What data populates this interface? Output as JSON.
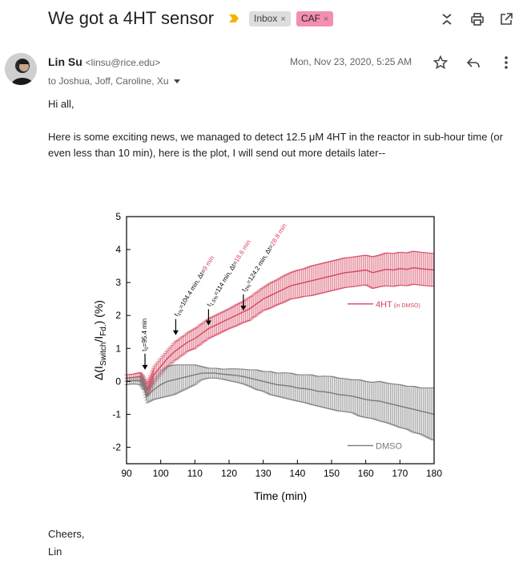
{
  "email": {
    "subject": "We got a 4HT sensor",
    "labels": [
      {
        "name": "Inbox",
        "remove": "×"
      },
      {
        "name": "CAF",
        "remove": "×"
      }
    ],
    "sender_name": "Lin Su",
    "sender_email": "<linsu@rice.edu>",
    "date": "Mon, Nov 23, 2020, 5:25 AM",
    "recipients": "to Joshua, Joff, Caroline, Xu",
    "greeting": "Hi all,",
    "body": "Here is some exciting news, we managed to detect 12.5 μM 4HT in the reactor in sub-hour time (or even less than 10 min), here is the plot, I will send out more details later--",
    "closing": "Cheers,",
    "signature": "Lin"
  },
  "icons": {
    "important": "important-marker-icon",
    "collapse": "collapse-icon",
    "print": "print-icon",
    "open_new": "open-in-new-window-icon",
    "star": "star-icon",
    "reply": "reply-icon",
    "more": "more-vertical-icon",
    "important_color": "#f4b400"
  },
  "chart_data": {
    "type": "line",
    "xlabel": "Time (min)",
    "ylabel_main": "Δ(I",
    "ylabel_sub1": "Switch",
    "ylabel_mid": "/I",
    "ylabel_sub2": "Fd.",
    "ylabel_tail": ") (%)",
    "xlim": [
      90,
      180
    ],
    "ylim": [
      -2.5,
      5
    ],
    "xticks": [
      90,
      100,
      110,
      120,
      130,
      140,
      150,
      160,
      170,
      180
    ],
    "yticks": [
      -2,
      -1,
      0,
      1,
      2,
      3,
      4,
      5
    ],
    "series": [
      {
        "name": "4HT",
        "name_suffix": "(in DMSO)",
        "color": "#d6455f",
        "x": [
          90,
          92,
          94,
          95,
          96,
          97,
          98,
          100,
          102,
          104,
          106,
          108,
          110,
          112,
          114,
          116,
          118,
          120,
          122,
          124,
          126,
          128,
          130,
          132,
          134,
          136,
          138,
          140,
          142,
          144,
          146,
          148,
          150,
          152,
          154,
          156,
          158,
          160,
          162,
          164,
          166,
          168,
          170,
          172,
          174,
          176,
          178,
          180
        ],
        "y": [
          0.1,
          0.12,
          0.15,
          0.0,
          -0.25,
          -0.05,
          0.2,
          0.45,
          0.7,
          0.9,
          1.05,
          1.2,
          1.3,
          1.45,
          1.6,
          1.7,
          1.8,
          1.9,
          2.0,
          2.1,
          2.2,
          2.35,
          2.5,
          2.6,
          2.7,
          2.8,
          2.9,
          2.95,
          3.0,
          3.05,
          3.1,
          3.15,
          3.2,
          3.25,
          3.3,
          3.32,
          3.35,
          3.38,
          3.3,
          3.35,
          3.4,
          3.38,
          3.42,
          3.4,
          3.45,
          3.42,
          3.4,
          3.38
        ],
        "err": [
          0.1,
          0.1,
          0.12,
          0.15,
          0.2,
          0.22,
          0.25,
          0.25,
          0.25,
          0.28,
          0.28,
          0.28,
          0.3,
          0.3,
          0.3,
          0.3,
          0.3,
          0.3,
          0.32,
          0.32,
          0.35,
          0.35,
          0.35,
          0.38,
          0.38,
          0.4,
          0.4,
          0.42,
          0.42,
          0.45,
          0.45,
          0.45,
          0.45,
          0.45,
          0.45,
          0.45,
          0.45,
          0.45,
          0.48,
          0.48,
          0.5,
          0.5,
          0.5,
          0.5,
          0.5,
          0.5,
          0.5,
          0.5
        ]
      },
      {
        "name": "DMSO",
        "color": "#7a7a7a",
        "x": [
          90,
          92,
          94,
          95,
          96,
          98,
          100,
          102,
          104,
          106,
          108,
          110,
          112,
          114,
          116,
          118,
          120,
          122,
          124,
          126,
          128,
          130,
          132,
          134,
          136,
          138,
          140,
          142,
          144,
          146,
          148,
          150,
          152,
          154,
          156,
          158,
          160,
          162,
          164,
          166,
          168,
          170,
          172,
          174,
          176,
          178,
          180
        ],
        "y": [
          0.0,
          0.02,
          0.02,
          -0.1,
          -0.45,
          -0.25,
          -0.1,
          0.0,
          0.05,
          0.1,
          0.15,
          0.2,
          0.25,
          0.25,
          0.25,
          0.22,
          0.2,
          0.18,
          0.15,
          0.1,
          0.05,
          0.0,
          -0.05,
          -0.1,
          -0.12,
          -0.15,
          -0.2,
          -0.22,
          -0.25,
          -0.3,
          -0.32,
          -0.35,
          -0.4,
          -0.42,
          -0.45,
          -0.5,
          -0.55,
          -0.58,
          -0.6,
          -0.65,
          -0.7,
          -0.75,
          -0.8,
          -0.85,
          -0.9,
          -0.95,
          -1.0
        ],
        "err": [
          0.1,
          0.1,
          0.12,
          0.15,
          0.2,
          0.3,
          0.4,
          0.45,
          0.45,
          0.4,
          0.35,
          0.3,
          0.2,
          0.15,
          0.15,
          0.15,
          0.18,
          0.2,
          0.22,
          0.25,
          0.3,
          0.3,
          0.35,
          0.35,
          0.38,
          0.4,
          0.4,
          0.42,
          0.45,
          0.45,
          0.48,
          0.5,
          0.5,
          0.5,
          0.5,
          0.55,
          0.55,
          0.55,
          0.6,
          0.6,
          0.62,
          0.65,
          0.65,
          0.7,
          0.7,
          0.75,
          0.8
        ]
      }
    ],
    "legend": "right",
    "annotations": [
      {
        "x": 95.4,
        "y": 0.4,
        "text_main": "t",
        "text_sub": "0",
        "text_rest": "=95.4 min",
        "text_red": ""
      },
      {
        "x": 104.4,
        "y": 1.45,
        "text_main": "t",
        "text_sub": "1%",
        "text_rest": "=104.4 min, Δt=",
        "text_red": "9 min"
      },
      {
        "x": 114.0,
        "y": 1.75,
        "text_main": "t",
        "text_sub": "1.5%",
        "text_rest": "=114 min, Δt=",
        "text_red": "18.6 min"
      },
      {
        "x": 124.2,
        "y": 2.2,
        "text_main": "t",
        "text_sub": "2%",
        "text_rest": "=124.2 min, Δt=",
        "text_red": "28.8 min"
      }
    ]
  }
}
